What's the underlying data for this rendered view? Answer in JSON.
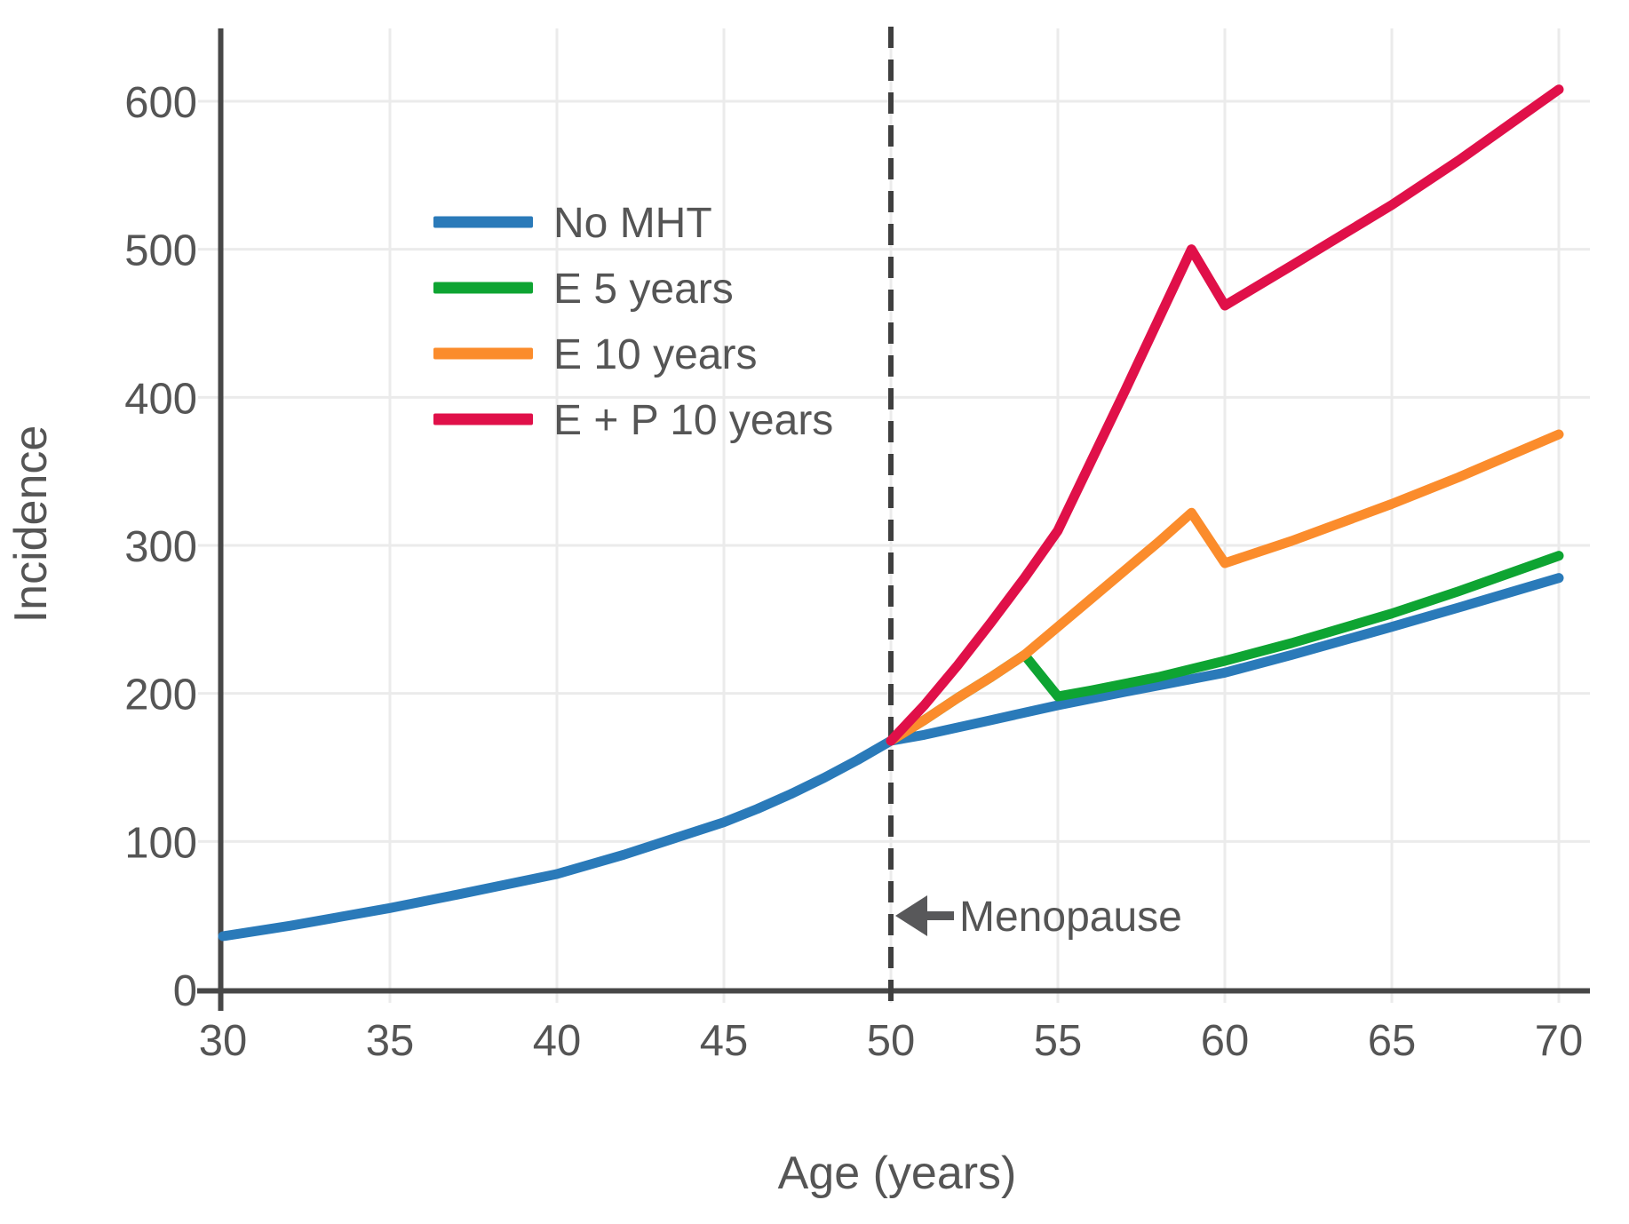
{
  "figure": {
    "background_color": "#ffffff",
    "text_color": "#555555",
    "grid_color": "#ebebeb",
    "spine_color": "#474747",
    "dashed_line_color": "#3f3f3f",
    "arrow_color": "#58585a"
  },
  "chart_data": {
    "type": "line",
    "title": "",
    "xlabel": "Age (years)",
    "ylabel": "Incidence",
    "xlim": [
      30,
      70
    ],
    "ylim": [
      0,
      650
    ],
    "grid": true,
    "x_ticks": [
      30,
      35,
      40,
      45,
      50,
      55,
      60,
      65,
      70
    ],
    "y_ticks": [
      0,
      100,
      200,
      300,
      400,
      500,
      600
    ],
    "legend_position": "upper-left-inside",
    "annotation": {
      "text": "Menopause",
      "x": 50,
      "y": 50,
      "arrow": "left-pointing"
    },
    "reference_line": {
      "x": 50,
      "style": "dashed",
      "label": "Menopause"
    },
    "series": [
      {
        "name": "No MHT",
        "color": "#2a7ab9",
        "points": [
          [
            30,
            36
          ],
          [
            32,
            43
          ],
          [
            35,
            55
          ],
          [
            37,
            64
          ],
          [
            40,
            78
          ],
          [
            42,
            91
          ],
          [
            45,
            113
          ],
          [
            46,
            122
          ],
          [
            47,
            132
          ],
          [
            48,
            143
          ],
          [
            49,
            155
          ],
          [
            50,
            168
          ],
          [
            51,
            172
          ],
          [
            52,
            177
          ],
          [
            53,
            182
          ],
          [
            55,
            192
          ],
          [
            57,
            201
          ],
          [
            60,
            214
          ],
          [
            62,
            226
          ],
          [
            65,
            245
          ],
          [
            67,
            258
          ],
          [
            70,
            278
          ]
        ]
      },
      {
        "name": "E 5 years",
        "color": "#0ea432",
        "points": [
          [
            50,
            168
          ],
          [
            51,
            182
          ],
          [
            52,
            197
          ],
          [
            53,
            211
          ],
          [
            54,
            226
          ],
          [
            55,
            198
          ],
          [
            56,
            202
          ],
          [
            58,
            211
          ],
          [
            60,
            222
          ],
          [
            62,
            234
          ],
          [
            65,
            254
          ],
          [
            67,
            269
          ],
          [
            70,
            293
          ]
        ]
      },
      {
        "name": "E 10 years",
        "color": "#fb8c2c",
        "points": [
          [
            50,
            168
          ],
          [
            51,
            182
          ],
          [
            52,
            197
          ],
          [
            53,
            211
          ],
          [
            54,
            226
          ],
          [
            55,
            245
          ],
          [
            56,
            264
          ],
          [
            57,
            283
          ],
          [
            58,
            302
          ],
          [
            59,
            322
          ],
          [
            60,
            288
          ],
          [
            62,
            303
          ],
          [
            65,
            328
          ],
          [
            67,
            346
          ],
          [
            70,
            375
          ]
        ]
      },
      {
        "name": "E + P 10 years",
        "color": "#e01049",
        "points": [
          [
            50,
            168
          ],
          [
            51,
            192
          ],
          [
            52,
            219
          ],
          [
            53,
            248
          ],
          [
            54,
            278
          ],
          [
            55,
            310
          ],
          [
            56,
            357
          ],
          [
            57,
            404
          ],
          [
            58,
            452
          ],
          [
            59,
            500
          ],
          [
            60,
            462
          ],
          [
            62,
            489
          ],
          [
            65,
            530
          ],
          [
            67,
            560
          ],
          [
            70,
            608
          ]
        ]
      }
    ]
  }
}
